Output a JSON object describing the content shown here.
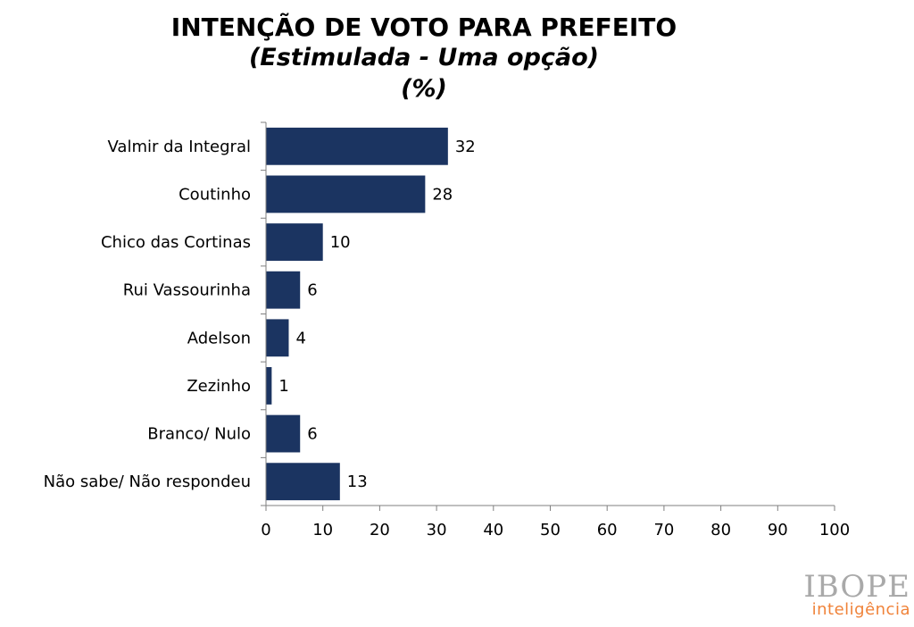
{
  "header": {
    "title": "INTENÇÃO DE VOTO PARA PREFEITO",
    "subtitle": "(Estimulada - Uma opção)",
    "unit": "(%)"
  },
  "logo": {
    "main": "IBOPE",
    "sub": "inteligência"
  },
  "colors": {
    "bar": "#1b3461",
    "axis": "#7f7f7f"
  },
  "chart_data": {
    "type": "bar",
    "orientation": "horizontal",
    "title": "INTENÇÃO DE VOTO PARA PREFEITO",
    "subtitle": "(Estimulada - Uma opção)",
    "unit": "(%)",
    "categories": [
      "Valmir da Integral",
      "Coutinho",
      "Chico das Cortinas",
      "Rui Vassourinha",
      "Adelson",
      "Zezinho",
      "Branco/ Nulo",
      "Não sabe/ Não respondeu"
    ],
    "values": [
      32,
      28,
      10,
      6,
      4,
      1,
      6,
      13
    ],
    "xlim": [
      0,
      100
    ],
    "xticks": [
      0,
      10,
      20,
      30,
      40,
      50,
      60,
      70,
      80,
      90,
      100
    ],
    "grid": false,
    "legend": "none"
  }
}
